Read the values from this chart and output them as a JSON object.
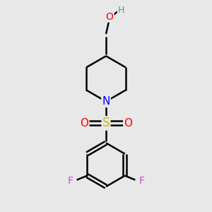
{
  "background_color": "#e8e8e8",
  "atom_colors": {
    "C": "#000000",
    "H": "#5a9090",
    "O": "#ff0000",
    "N": "#0000ff",
    "S": "#ccbb00",
    "F": "#cc44cc"
  },
  "bond_color": "#000000",
  "bond_width": 1.8,
  "font_size": 10
}
